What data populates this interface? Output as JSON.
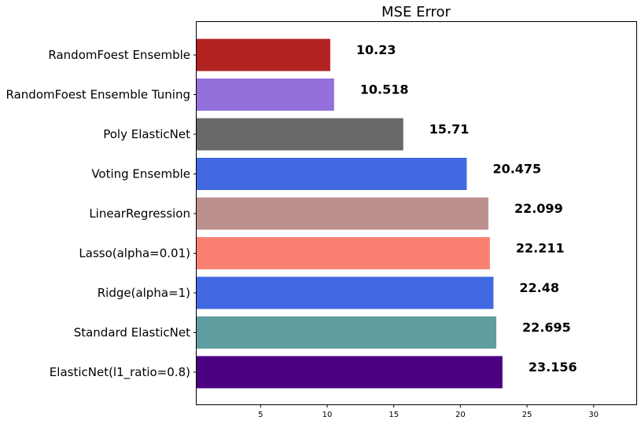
{
  "chart_data": {
    "type": "bar",
    "orientation": "horizontal",
    "title": "MSE Error",
    "xlabel": "",
    "ylabel": "",
    "xlim": [
      0.2,
      33.2
    ],
    "xticks": [
      5,
      10,
      15,
      20,
      25,
      30
    ],
    "grid": false,
    "categories": [
      "RandomFoest Ensemble",
      "RandomFoest Ensemble Tuning",
      "Poly ElasticNet",
      "Voting Ensemble",
      "LinearRegression",
      "Lasso(alpha=0.01)",
      "Ridge(alpha=1)",
      "Standard ElasticNet",
      "ElasticNet(l1_ratio=0.8)"
    ],
    "values": [
      10.23,
      10.518,
      15.71,
      20.475,
      22.099,
      22.211,
      22.48,
      22.695,
      23.156
    ],
    "value_labels": [
      "10.23",
      "10.518",
      "15.71",
      "20.475",
      "22.099",
      "22.211",
      "22.48",
      "22.695",
      "23.156"
    ],
    "colors": [
      "#b22222",
      "#9370db",
      "#696969",
      "#4169e1",
      "#bc8f8f",
      "#fa8072",
      "#4169e1",
      "#5f9ea0",
      "#4b0082"
    ]
  }
}
